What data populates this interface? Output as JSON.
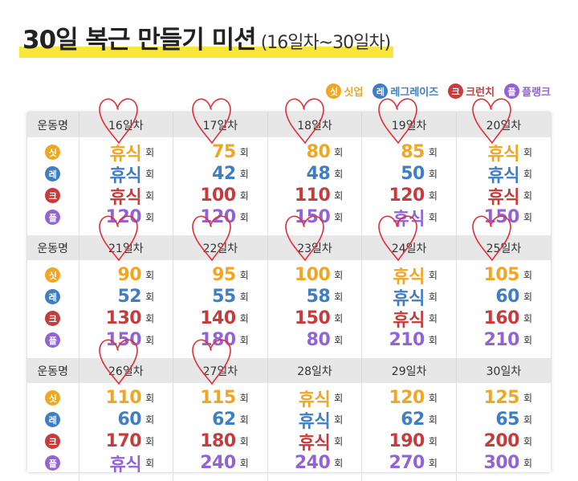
{
  "title": {
    "main": "30일 복근 만들기 미션",
    "sub": "(16일차~30일차)"
  },
  "colors": {
    "situp": "#f0a623",
    "leg": "#3f7ec3",
    "crunch": "#c63b3b",
    "plank": "#9263d6",
    "heart": "#e32f3a",
    "highlight": "#f8e63a"
  },
  "legend": [
    {
      "badge": "싯",
      "label": "싯업",
      "color": "#f0a623"
    },
    {
      "badge": "레",
      "label": "레그레이즈",
      "color": "#3f7ec3"
    },
    {
      "badge": "크",
      "label": "크런치",
      "color": "#c63b3b"
    },
    {
      "badge": "플",
      "label": "플랭크",
      "color": "#9263d6"
    }
  ],
  "column_label": "운동명",
  "unit": "회",
  "row_badges": [
    "싯",
    "레",
    "크",
    "플"
  ],
  "weeks": [
    {
      "days": [
        {
          "day": "16일차",
          "values": [
            "휴식",
            "휴식",
            "휴식",
            "120"
          ],
          "checked": true
        },
        {
          "day": "17일차",
          "values": [
            "75",
            "42",
            "100",
            "120"
          ],
          "checked": true
        },
        {
          "day": "18일차",
          "values": [
            "80",
            "48",
            "110",
            "150"
          ],
          "checked": true
        },
        {
          "day": "19일차",
          "values": [
            "85",
            "50",
            "120",
            "휴식"
          ],
          "checked": true
        },
        {
          "day": "20일차",
          "values": [
            "휴식",
            "휴식",
            "휴식",
            "150"
          ],
          "checked": true
        }
      ]
    },
    {
      "days": [
        {
          "day": "21일차",
          "values": [
            "90",
            "52",
            "130",
            "150"
          ],
          "checked": true
        },
        {
          "day": "22일차",
          "values": [
            "95",
            "55",
            "140",
            "180"
          ],
          "checked": true
        },
        {
          "day": "23일차",
          "values": [
            "100",
            "58",
            "150",
            "80"
          ],
          "checked": true
        },
        {
          "day": "24일차",
          "values": [
            "휴식",
            "휴식",
            "휴식",
            "210"
          ],
          "checked": true
        },
        {
          "day": "25일차",
          "values": [
            "105",
            "60",
            "160",
            "210"
          ],
          "checked": true
        }
      ]
    },
    {
      "days": [
        {
          "day": "26일차",
          "values": [
            "110",
            "60",
            "170",
            "휴식"
          ],
          "checked": true
        },
        {
          "day": "27일차",
          "values": [
            "115",
            "62",
            "180",
            "240"
          ],
          "checked": true
        },
        {
          "day": "28일차",
          "values": [
            "휴식",
            "휴식",
            "휴식",
            "240"
          ],
          "checked": false
        },
        {
          "day": "29일차",
          "values": [
            "120",
            "62",
            "190",
            "270"
          ],
          "checked": false
        },
        {
          "day": "30일차",
          "values": [
            "125",
            "65",
            "200",
            "300"
          ],
          "checked": false
        }
      ]
    }
  ]
}
